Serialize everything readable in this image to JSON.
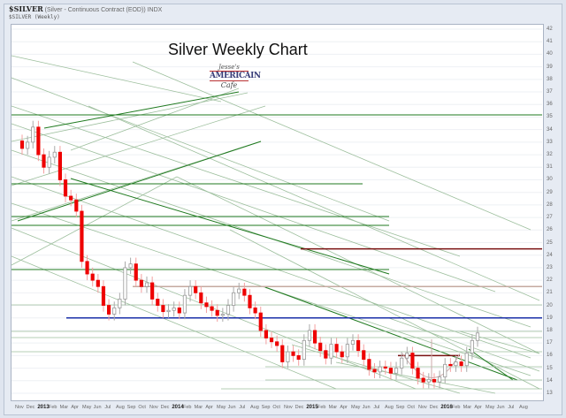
{
  "header": {
    "symbol": "$SILVER",
    "description": "(Silver - Continuous Contract (EOD)) INDX",
    "series_label": "$SILVER (Weekly)"
  },
  "title": "Silver Weekly Chart",
  "logo": {
    "line1": "Jesse's",
    "line2": "AMERICAIN",
    "line3": "Cafe"
  },
  "colors": {
    "down_candle": "#ee0000",
    "up_candle": "#999999",
    "trend_dark": "#1f7a1f",
    "trend_light": "#9dbf9d",
    "resistance_red": "#7a1010",
    "resistance_tan": "#c4aaa0",
    "support_blue": "#1a2fa8"
  },
  "chart_data": {
    "type": "candlestick",
    "title": "Silver Weekly Chart",
    "xlabel": "",
    "ylabel": "",
    "ylim": [
      13,
      42
    ],
    "y_ticks": [
      42,
      41,
      40,
      39,
      38,
      37,
      36,
      35,
      34,
      33,
      32,
      31,
      30,
      29,
      28,
      27,
      26,
      25,
      24,
      23,
      22,
      21,
      20,
      19,
      18,
      17,
      16,
      15,
      14,
      13
    ],
    "x_ticks": [
      "Nov",
      "Dec",
      "2013",
      "Feb",
      "Mar",
      "Apr",
      "May",
      "Jun",
      "Jul",
      "Aug",
      "Sep",
      "Oct",
      "Nov",
      "Dec",
      "2014",
      "Feb",
      "Mar",
      "Apr",
      "May",
      "Jun",
      "Jul",
      "Aug",
      "Sep",
      "Oct",
      "Nov",
      "Dec",
      "2015",
      "Feb",
      "Mar",
      "Apr",
      "May",
      "Jun",
      "Jul",
      "Aug",
      "Sep",
      "Oct",
      "Nov",
      "Dec",
      "2016",
      "Feb",
      "Mar",
      "Apr",
      "May",
      "Jun",
      "Jul",
      "Aug"
    ],
    "grid": true,
    "weekly_close_path": [
      {
        "period": "2012-Oct",
        "close": 32.5
      },
      {
        "period": "2012-Nov",
        "close": 33.0
      },
      {
        "period": "2012-Dec",
        "close": 34.2
      },
      {
        "period": "2012-Dec",
        "close": 32.0
      },
      {
        "period": "2013-Jan",
        "close": 31.0
      },
      {
        "period": "2013-Jan",
        "close": 31.8
      },
      {
        "period": "2013-Feb",
        "close": 32.2
      },
      {
        "period": "2013-Feb",
        "close": 30.0
      },
      {
        "period": "2013-Mar",
        "close": 28.7
      },
      {
        "period": "2013-Mar",
        "close": 28.4
      },
      {
        "period": "2013-Apr",
        "close": 27.5
      },
      {
        "period": "2013-Apr",
        "close": 23.5
      },
      {
        "period": "2013-May",
        "close": 22.5
      },
      {
        "period": "2013-May",
        "close": 22.0
      },
      {
        "period": "2013-Jun",
        "close": 21.5
      },
      {
        "period": "2013-Jun",
        "close": 20.0
      },
      {
        "period": "2013-Jul",
        "close": 19.3
      },
      {
        "period": "2013-Jul",
        "close": 19.8
      },
      {
        "period": "2013-Aug",
        "close": 20.5
      },
      {
        "period": "2013-Aug",
        "close": 23.0
      },
      {
        "period": "2013-Sep",
        "close": 23.3
      },
      {
        "period": "2013-Sep",
        "close": 22.0
      },
      {
        "period": "2013-Oct",
        "close": 21.5
      },
      {
        "period": "2013-Oct",
        "close": 21.8
      },
      {
        "period": "2013-Nov",
        "close": 20.5
      },
      {
        "period": "2013-Nov",
        "close": 20.0
      },
      {
        "period": "2013-Dec",
        "close": 19.5
      },
      {
        "period": "2013-Dec",
        "close": 19.6
      },
      {
        "period": "2014-Jan",
        "close": 19.8
      },
      {
        "period": "2014-Jan",
        "close": 19.4
      },
      {
        "period": "2014-Feb",
        "close": 20.8
      },
      {
        "period": "2014-Feb",
        "close": 21.5
      },
      {
        "period": "2014-Mar",
        "close": 21.0
      },
      {
        "period": "2014-Mar",
        "close": 20.2
      },
      {
        "period": "2014-Apr",
        "close": 19.9
      },
      {
        "period": "2014-Apr",
        "close": 19.6
      },
      {
        "period": "2014-May",
        "close": 19.2
      },
      {
        "period": "2014-May",
        "close": 19.3
      },
      {
        "period": "2014-Jun",
        "close": 20.0
      },
      {
        "period": "2014-Jun",
        "close": 21.0
      },
      {
        "period": "2014-Jul",
        "close": 21.3
      },
      {
        "period": "2014-Jul",
        "close": 20.8
      },
      {
        "period": "2014-Aug",
        "close": 19.8
      },
      {
        "period": "2014-Aug",
        "close": 19.4
      },
      {
        "period": "2014-Sep",
        "close": 18.0
      },
      {
        "period": "2014-Sep",
        "close": 17.4
      },
      {
        "period": "2014-Oct",
        "close": 17.1
      },
      {
        "period": "2014-Oct",
        "close": 16.8
      },
      {
        "period": "2014-Nov",
        "close": 15.5
      },
      {
        "period": "2014-Nov",
        "close": 16.3
      },
      {
        "period": "2014-Dec",
        "close": 16.0
      },
      {
        "period": "2014-Dec",
        "close": 15.7
      },
      {
        "period": "2015-Jan",
        "close": 17.2
      },
      {
        "period": "2015-Jan",
        "close": 18.0
      },
      {
        "period": "2015-Feb",
        "close": 17.0
      },
      {
        "period": "2015-Feb",
        "close": 16.4
      },
      {
        "period": "2015-Mar",
        "close": 15.8
      },
      {
        "period": "2015-Mar",
        "close": 16.9
      },
      {
        "period": "2015-Apr",
        "close": 16.3
      },
      {
        "period": "2015-Apr",
        "close": 15.9
      },
      {
        "period": "2015-May",
        "close": 16.9
      },
      {
        "period": "2015-May",
        "close": 17.2
      },
      {
        "period": "2015-Jun",
        "close": 16.4
      },
      {
        "period": "2015-Jun",
        "close": 15.7
      },
      {
        "period": "2015-Jul",
        "close": 14.9
      },
      {
        "period": "2015-Jul",
        "close": 14.7
      },
      {
        "period": "2015-Aug",
        "close": 15.1
      },
      {
        "period": "2015-Aug",
        "close": 15.0
      },
      {
        "period": "2015-Sep",
        "close": 14.6
      },
      {
        "period": "2015-Sep",
        "close": 15.0
      },
      {
        "period": "2015-Oct",
        "close": 15.8
      },
      {
        "period": "2015-Oct",
        "close": 16.2
      },
      {
        "period": "2015-Nov",
        "close": 15.0
      },
      {
        "period": "2015-Nov",
        "close": 14.2
      },
      {
        "period": "2015-Dec",
        "close": 13.9
      },
      {
        "period": "2015-Dec",
        "close": 14.1
      },
      {
        "period": "2016-Jan",
        "close": 13.9
      },
      {
        "period": "2016-Jan",
        "close": 14.3
      },
      {
        "period": "2016-Feb",
        "close": 15.3
      },
      {
        "period": "2016-Feb",
        "close": 15.2
      },
      {
        "period": "2016-Mar",
        "close": 15.5
      },
      {
        "period": "2016-Mar",
        "close": 15.2
      },
      {
        "period": "2016-Apr",
        "close": 16.2
      },
      {
        "period": "2016-Apr",
        "close": 17.2
      },
      {
        "period": "2016-Apr",
        "close": 17.8
      }
    ],
    "annotations": [
      {
        "type": "hline",
        "label": "resistance",
        "y": 24.5,
        "color": "#7a1010"
      },
      {
        "type": "hline",
        "label": "resistance",
        "y": 21.5,
        "color": "#c4aaa0"
      },
      {
        "type": "hline",
        "label": "support",
        "y": 19.0,
        "color": "#1a2fa8"
      },
      {
        "type": "hline",
        "label": "neckline",
        "y": 16.0,
        "color": "#7a1010"
      },
      {
        "type": "arc",
        "label": "rounded bottom",
        "x_range": [
          "2015-Nov",
          "2016-Feb"
        ],
        "y_bottom": 13.6
      },
      {
        "type": "trendline",
        "label": "long-term downtrend",
        "from": {
          "period": "2013-Mar",
          "y": 30.0
        },
        "to": {
          "period": "2016-Jul",
          "y": 14.2
        }
      }
    ]
  }
}
